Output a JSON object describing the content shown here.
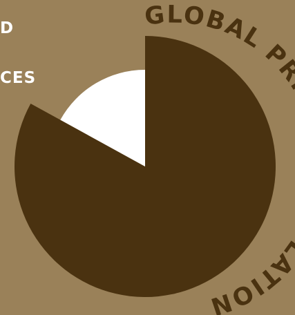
{
  "page": {
    "left_fragment_1": "D",
    "left_fragment_2": "CES"
  },
  "chart_data": {
    "type": "pie",
    "title": "GLOBAL PRISON POPULATION",
    "slices": [
      {
        "value": 83,
        "color": "#4a3210"
      },
      {
        "value": 17,
        "color": "#ffffff"
      }
    ],
    "colors": {
      "background": "#9a8159",
      "accent": "#4a3210",
      "secondary": "#ffffff"
    }
  }
}
